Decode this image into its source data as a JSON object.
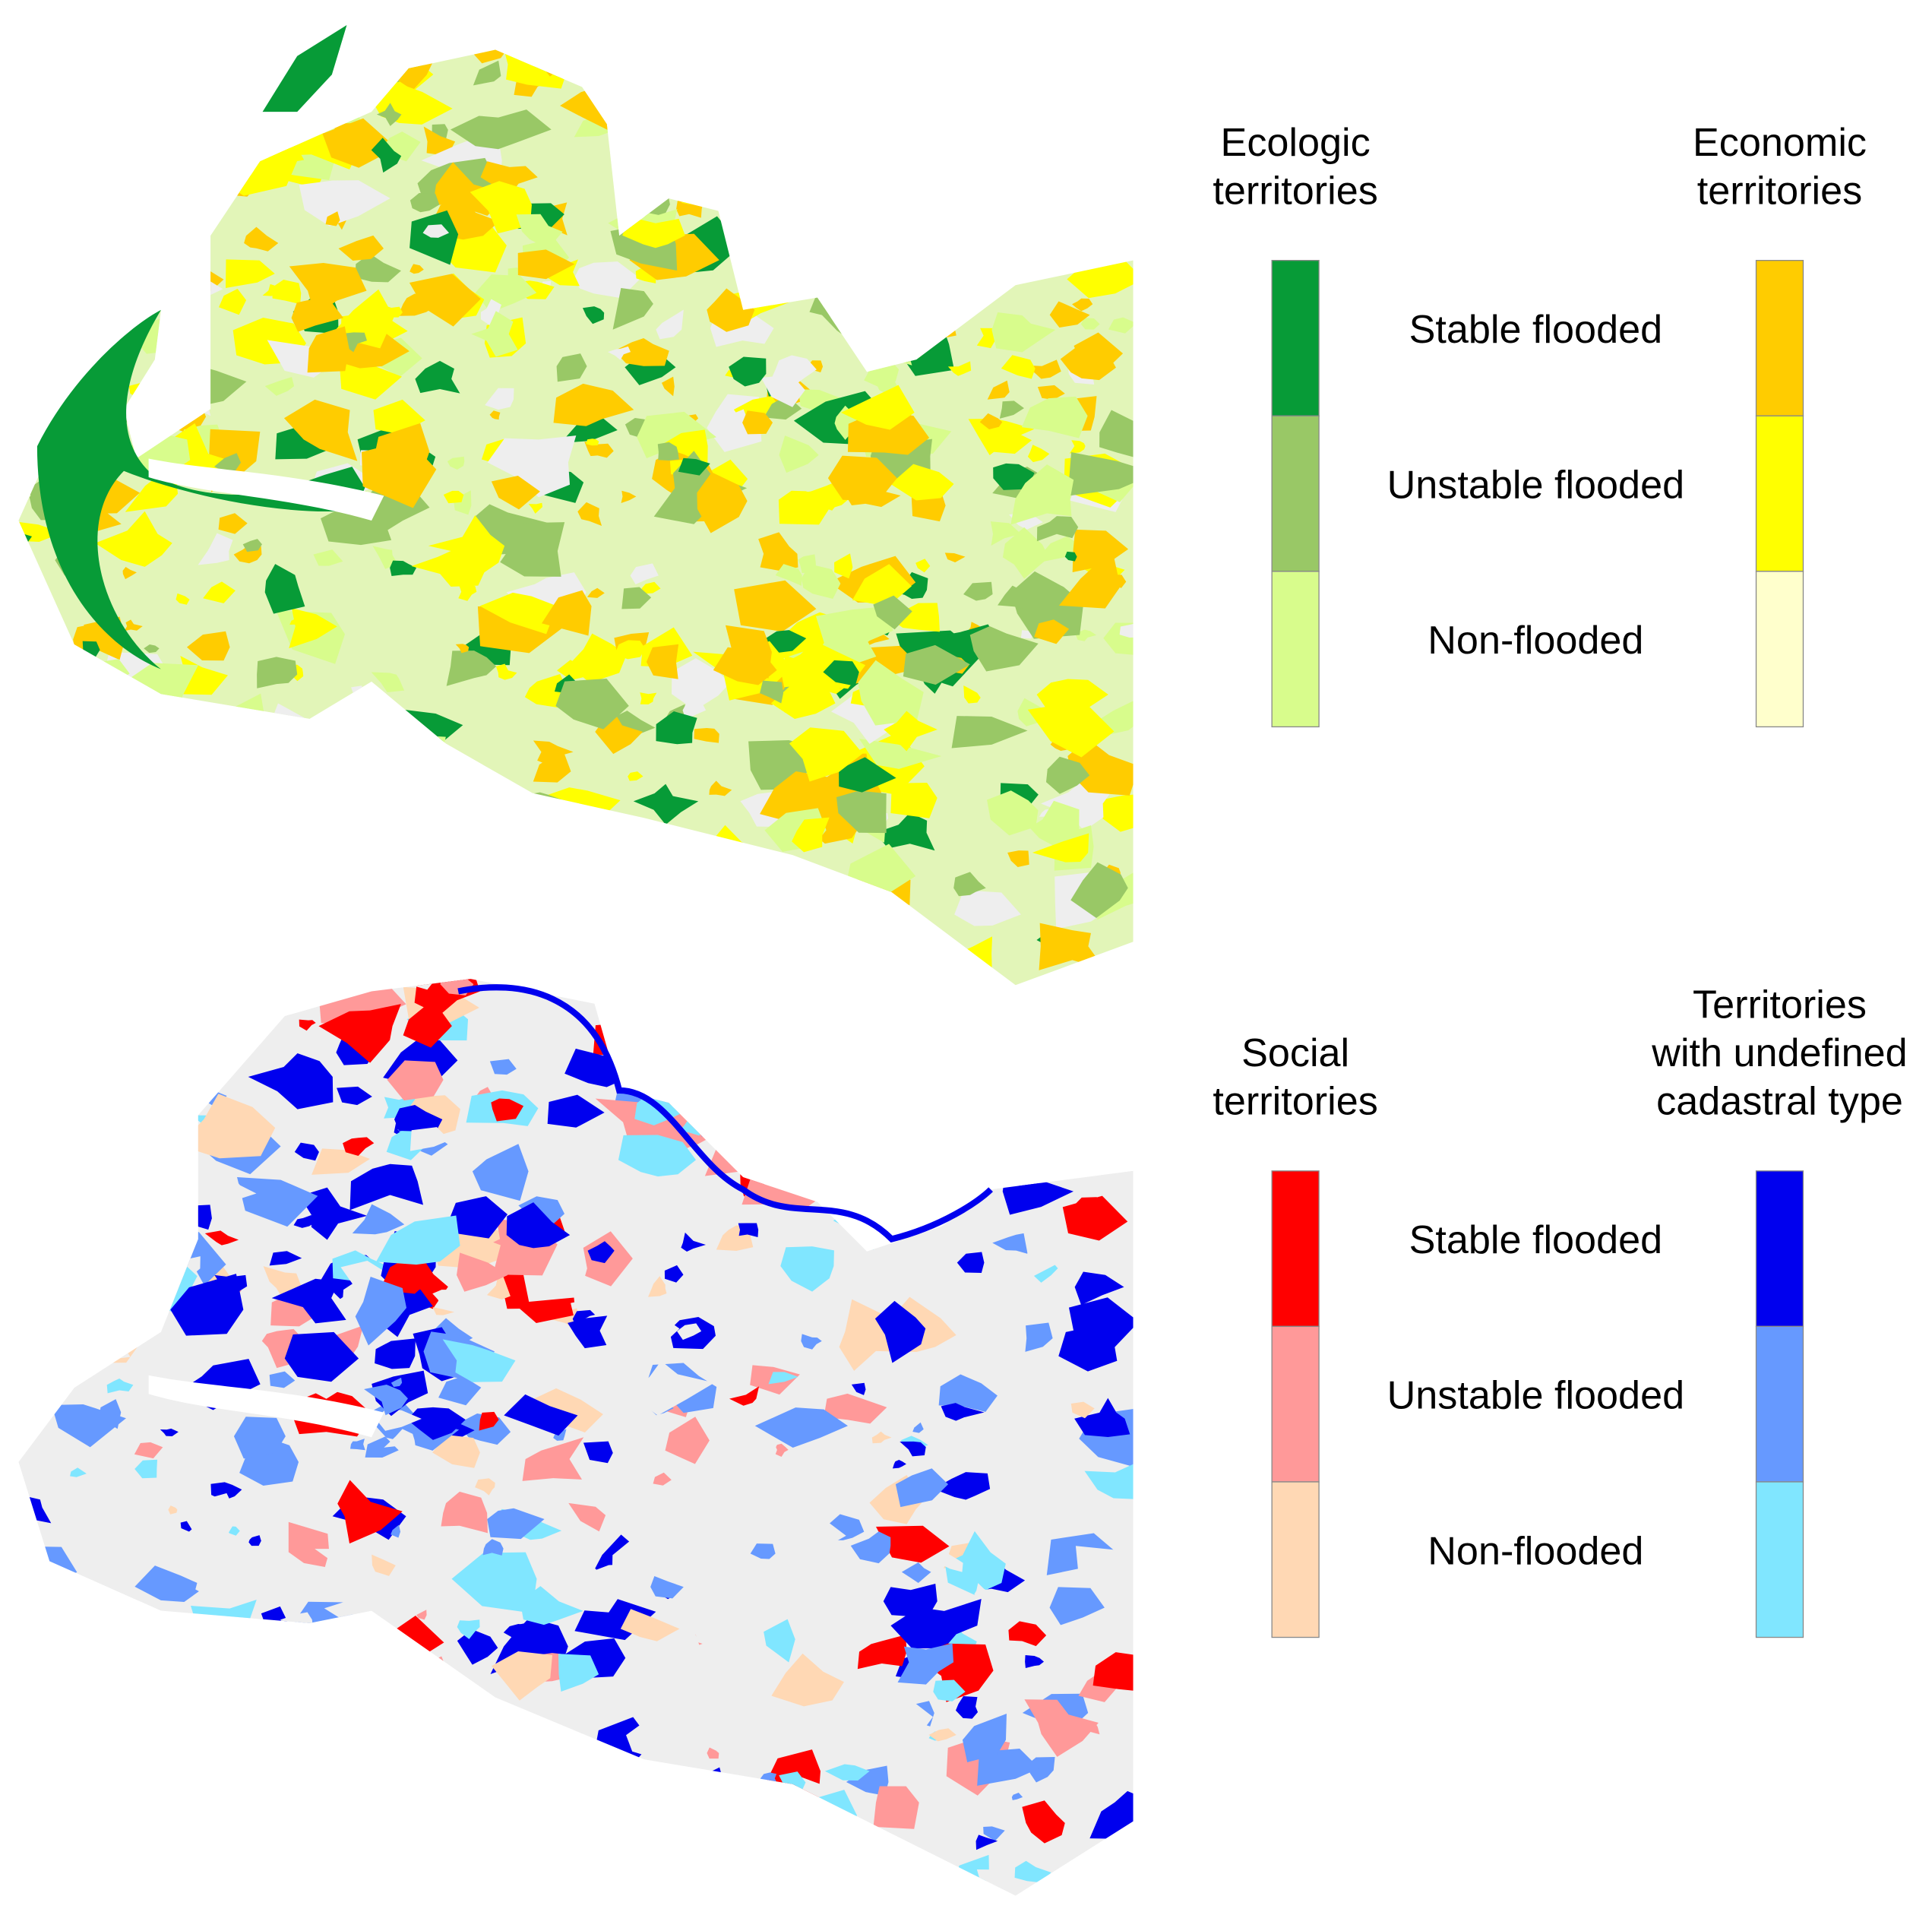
{
  "panels": [
    {
      "classes": [
        "Stable flooded",
        "Unstable flooded",
        "Non-flooded"
      ],
      "legends": [
        {
          "title_lines": [
            "Ecologic",
            "territories"
          ],
          "colors": [
            "#079b37",
            "#99c866",
            "#d8fc8c"
          ]
        },
        {
          "title_lines": [
            "Economic",
            "territories"
          ],
          "colors": [
            "#ffcc00",
            "#ffff00",
            "#ffffcc"
          ]
        }
      ]
    },
    {
      "classes": [
        "Stable flooded",
        "Unstable flooded",
        "Non-flooded"
      ],
      "legends": [
        {
          "title_lines": [
            "Social",
            "territories"
          ],
          "colors": [
            "#ff0000",
            "#ff9999",
            "#ffd8b4"
          ]
        },
        {
          "title_lines": [
            "Territories",
            "with undefined",
            "cadastral type"
          ],
          "colors": [
            "#0000ee",
            "#6699ff",
            "#80e6ff"
          ]
        }
      ]
    }
  ]
}
